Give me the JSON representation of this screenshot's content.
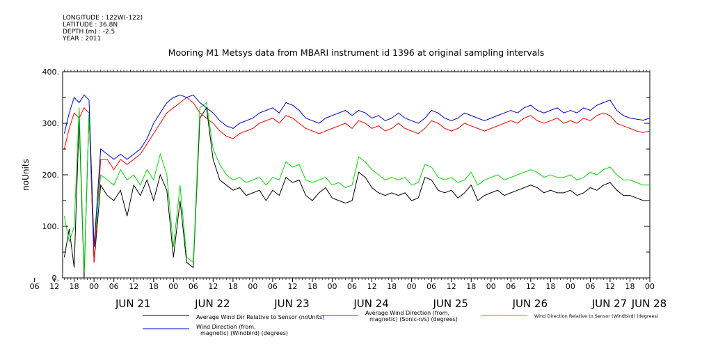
{
  "header": {
    "longitude": "LONGITUDE : 122W(-122)",
    "latitude": "LATITUDE : 36.8N",
    "depth": "DEPTH (m) : -2.5",
    "year": "YEAR : 2011"
  },
  "chart_data": {
    "type": "line",
    "title": "Mooring M1 Metsys data from MBARI instrument id 1396 at original sampling intervals",
    "ylabel": "noUnits",
    "xlabel": "",
    "ylim": [
      0,
      400
    ],
    "y_ticks": [
      0,
      100,
      200,
      300,
      400
    ],
    "x_unit": "hours since 2011-06-21 00:00",
    "xlim": [
      -9.5,
      168
    ],
    "x_hour_ticks": [
      "06",
      "12",
      "18",
      "00",
      "06",
      "12",
      "18",
      "00",
      "06",
      "12",
      "18",
      "00",
      "06",
      "12",
      "18",
      "00",
      "06",
      "12",
      "18",
      "00",
      "06",
      "12",
      "18",
      "00",
      "06",
      "12",
      "18",
      "00",
      "06",
      "12",
      "18",
      "00"
    ],
    "x_hour_tick_positions": [
      -18,
      -12,
      -6,
      0,
      6,
      12,
      18,
      24,
      30,
      36,
      42,
      48,
      54,
      60,
      66,
      72,
      78,
      84,
      90,
      96,
      102,
      108,
      114,
      120,
      126,
      132,
      138,
      144,
      150,
      156,
      162,
      168
    ],
    "day_labels": [
      {
        "label": "JUN 21",
        "hour": 12
      },
      {
        "label": "JUN 22",
        "hour": 36
      },
      {
        "label": "JUN 23",
        "hour": 60
      },
      {
        "label": "JUN 24",
        "hour": 84
      },
      {
        "label": "JUN 25",
        "hour": 108
      },
      {
        "label": "JUN 26",
        "hour": 132
      },
      {
        "label": "JUN 27",
        "hour": 156
      },
      {
        "label": "JUN 28",
        "hour": 168
      }
    ],
    "grid": false,
    "legend_position": "bottom",
    "series": [
      {
        "name": "Average Wind Dir Relative to Sensor (noUnits)",
        "color": "#000000",
        "x": [
          -9,
          -7.5,
          -6,
          -4.5,
          -3,
          -1.5,
          0,
          2,
          4,
          6,
          8,
          10,
          12,
          14,
          16,
          18,
          20,
          22,
          24,
          26,
          28,
          30,
          32,
          34,
          36,
          38,
          40,
          42,
          44,
          46,
          48,
          50,
          52,
          54,
          56,
          58,
          60,
          62,
          64,
          66,
          68,
          70,
          72,
          74,
          76,
          78,
          80,
          82,
          84,
          86,
          88,
          90,
          92,
          94,
          96,
          98,
          100,
          102,
          104,
          106,
          108,
          110,
          112,
          114,
          116,
          118,
          120,
          122,
          124,
          126,
          128,
          130,
          132,
          134,
          136,
          138,
          140,
          142,
          144,
          146,
          148,
          150,
          152,
          154,
          156,
          158,
          160,
          162,
          164,
          166,
          168
        ],
        "y": [
          40,
          95,
          20,
          310,
          0,
          320,
          30,
          180,
          160,
          150,
          170,
          120,
          180,
          160,
          190,
          150,
          200,
          170,
          40,
          150,
          30,
          20,
          310,
          330,
          230,
          190,
          180,
          170,
          175,
          160,
          165,
          170,
          150,
          170,
          160,
          195,
          185,
          190,
          160,
          150,
          165,
          175,
          155,
          150,
          145,
          150,
          205,
          195,
          175,
          165,
          160,
          165,
          160,
          165,
          150,
          155,
          195,
          190,
          170,
          165,
          170,
          155,
          165,
          180,
          150,
          160,
          165,
          170,
          160,
          165,
          170,
          175,
          180,
          175,
          165,
          170,
          165,
          165,
          170,
          160,
          165,
          175,
          170,
          180,
          185,
          170,
          160,
          160,
          155,
          150,
          150
        ]
      },
      {
        "name": "Average Wind Direction (from, magnetic) (Sonic-n/s) (degrees)",
        "color": "#ff0000",
        "x": [
          -9,
          -7.5,
          -6,
          -4.5,
          -3,
          -1.5,
          0,
          2,
          4,
          6,
          8,
          10,
          12,
          14,
          16,
          18,
          20,
          22,
          24,
          26,
          28,
          30,
          32,
          34,
          36,
          38,
          40,
          42,
          44,
          46,
          48,
          50,
          52,
          54,
          56,
          58,
          60,
          62,
          64,
          66,
          68,
          70,
          72,
          74,
          76,
          78,
          80,
          82,
          84,
          86,
          88,
          90,
          92,
          94,
          96,
          98,
          100,
          102,
          104,
          106,
          108,
          110,
          112,
          114,
          116,
          118,
          120,
          122,
          124,
          126,
          128,
          130,
          132,
          134,
          136,
          138,
          140,
          142,
          144,
          146,
          148,
          150,
          152,
          154,
          156,
          158,
          160,
          162,
          164,
          166,
          168
        ],
        "y": [
          250,
          290,
          320,
          310,
          330,
          320,
          30,
          230,
          230,
          210,
          230,
          220,
          230,
          240,
          260,
          280,
          300,
          320,
          330,
          340,
          350,
          340,
          320,
          310,
          300,
          285,
          275,
          270,
          280,
          285,
          290,
          300,
          305,
          310,
          300,
          315,
          310,
          300,
          290,
          285,
          280,
          285,
          290,
          295,
          300,
          290,
          305,
          300,
          290,
          295,
          285,
          290,
          300,
          290,
          285,
          280,
          290,
          305,
          300,
          290,
          285,
          290,
          300,
          295,
          290,
          285,
          290,
          295,
          300,
          305,
          300,
          310,
          315,
          305,
          300,
          305,
          310,
          300,
          305,
          300,
          310,
          305,
          315,
          320,
          315,
          300,
          295,
          290,
          285,
          282,
          285
        ]
      },
      {
        "name": "Wind Direction Relative to Sensor (Windbird) (degrees)",
        "color": "#00dd00",
        "x": [
          -9,
          -7.5,
          -6,
          -4.5,
          -3,
          -1.5,
          0,
          2,
          4,
          6,
          8,
          10,
          12,
          14,
          16,
          18,
          20,
          22,
          24,
          26,
          28,
          30,
          32,
          34,
          36,
          38,
          40,
          42,
          44,
          46,
          48,
          50,
          52,
          54,
          56,
          58,
          60,
          62,
          64,
          66,
          68,
          70,
          72,
          74,
          76,
          78,
          80,
          82,
          84,
          86,
          88,
          90,
          92,
          94,
          96,
          98,
          100,
          102,
          104,
          106,
          108,
          110,
          112,
          114,
          116,
          118,
          120,
          122,
          124,
          126,
          128,
          130,
          132,
          134,
          136,
          138,
          140,
          142,
          144,
          146,
          148,
          150,
          152,
          154,
          156,
          158,
          160,
          162,
          164,
          166,
          168
        ],
        "y": [
          120,
          70,
          100,
          330,
          10,
          320,
          60,
          200,
          190,
          180,
          210,
          190,
          200,
          180,
          210,
          190,
          240,
          200,
          60,
          180,
          40,
          30,
          330,
          340,
          250,
          220,
          200,
          190,
          195,
          185,
          190,
          195,
          180,
          195,
          190,
          225,
          215,
          220,
          190,
          185,
          190,
          195,
          180,
          185,
          175,
          180,
          235,
          225,
          210,
          200,
          190,
          195,
          190,
          195,
          180,
          185,
          220,
          215,
          195,
          190,
          195,
          185,
          190,
          205,
          180,
          190,
          195,
          200,
          190,
          195,
          200,
          205,
          210,
          205,
          195,
          200,
          195,
          195,
          200,
          190,
          195,
          205,
          200,
          210,
          215,
          200,
          190,
          190,
          185,
          180,
          180
        ]
      },
      {
        "name": "Wind Direction (from, magnetic) (Windbird) (degrees)",
        "color": "#0000dd",
        "x": [
          -9,
          -7.5,
          -6,
          -4.5,
          -3,
          -1.5,
          0,
          2,
          4,
          6,
          8,
          10,
          12,
          14,
          16,
          18,
          20,
          22,
          24,
          26,
          28,
          30,
          32,
          34,
          36,
          38,
          40,
          42,
          44,
          46,
          48,
          50,
          52,
          54,
          56,
          58,
          60,
          62,
          64,
          66,
          68,
          70,
          72,
          74,
          76,
          78,
          80,
          82,
          84,
          86,
          88,
          90,
          92,
          94,
          96,
          98,
          100,
          102,
          104,
          106,
          108,
          110,
          112,
          114,
          116,
          118,
          120,
          122,
          124,
          126,
          128,
          130,
          132,
          134,
          136,
          138,
          140,
          142,
          144,
          146,
          148,
          150,
          152,
          154,
          156,
          158,
          160,
          162,
          164,
          166,
          168
        ],
        "y": [
          280,
          320,
          350,
          340,
          355,
          345,
          60,
          250,
          240,
          230,
          240,
          230,
          240,
          250,
          270,
          300,
          320,
          340,
          350,
          355,
          350,
          355,
          340,
          330,
          320,
          305,
          295,
          290,
          300,
          305,
          310,
          320,
          325,
          330,
          320,
          340,
          335,
          325,
          310,
          305,
          300,
          310,
          315,
          320,
          325,
          315,
          325,
          320,
          310,
          315,
          305,
          310,
          320,
          310,
          305,
          300,
          310,
          325,
          320,
          310,
          305,
          310,
          320,
          315,
          310,
          305,
          310,
          315,
          320,
          325,
          320,
          330,
          335,
          325,
          320,
          325,
          330,
          320,
          325,
          320,
          330,
          325,
          335,
          340,
          345,
          325,
          315,
          310,
          308,
          306,
          310
        ]
      }
    ]
  }
}
